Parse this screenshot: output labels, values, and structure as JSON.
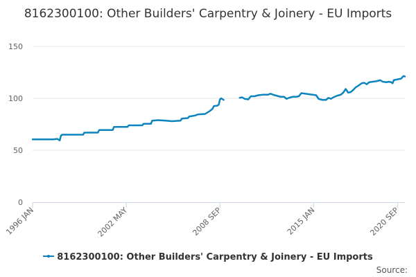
{
  "colors": {
    "series": "#0a84bf",
    "grid": "#e6e6e6",
    "axis": "#ccd6eb"
  },
  "credit": "Source:",
  "chart_data": {
    "type": "line",
    "title": "8162300100: Other Builders' Carpentry & Joinery - EU Imports",
    "xlabel": "",
    "ylabel": "",
    "ylim": [
      0,
      150
    ],
    "yticks": [
      "0",
      "50",
      "100",
      "150"
    ],
    "xticks": [
      {
        "label": "1996 JAN",
        "date": "1996-01"
      },
      {
        "label": "2002 MAY",
        "date": "2002-05"
      },
      {
        "label": "2008 SEP",
        "date": "2008-09"
      },
      {
        "label": "2015 JAN",
        "date": "2015-01"
      },
      {
        "label": "2020 SEP",
        "date": "2020-09"
      }
    ],
    "grid": true,
    "legend_position": "bottom",
    "series": [
      {
        "name": "8162300100: Other Builders' Carpentry & Joinery - EU Imports",
        "segments": [
          [
            [
              "1996-01",
              60.5
            ],
            [
              "1997-06",
              60.5
            ],
            [
              "1997-09",
              61
            ],
            [
              "1997-11",
              59.5
            ],
            [
              "1997-12",
              64
            ],
            [
              "1998-01",
              65
            ],
            [
              "1999-06",
              65
            ],
            [
              "1999-07",
              67
            ],
            [
              "2000-06",
              67
            ],
            [
              "2000-07",
              69.5
            ],
            [
              "2001-06",
              69.5
            ],
            [
              "2001-07",
              72.5
            ],
            [
              "2002-06",
              72.5
            ],
            [
              "2002-07",
              74
            ],
            [
              "2003-06",
              74
            ],
            [
              "2003-07",
              75.5
            ],
            [
              "2004-01",
              75.5
            ],
            [
              "2004-02",
              78.5
            ],
            [
              "2004-07",
              79
            ],
            [
              "2005-01",
              78.5
            ],
            [
              "2005-06",
              78
            ],
            [
              "2006-01",
              78.5
            ],
            [
              "2006-02",
              80.5
            ],
            [
              "2006-07",
              81
            ],
            [
              "2006-08",
              82.5
            ],
            [
              "2007-01",
              83.5
            ],
            [
              "2007-03",
              84.5
            ],
            [
              "2007-09",
              85
            ],
            [
              "2008-01",
              88
            ],
            [
              "2008-03",
              90
            ],
            [
              "2008-04",
              92.5
            ],
            [
              "2008-07",
              93
            ],
            [
              "2008-08",
              94
            ],
            [
              "2008-09",
              99
            ],
            [
              "2008-10",
              100
            ],
            [
              "2008-12",
              98.5
            ]
          ],
          [
            [
              "2010-01",
              100.5
            ],
            [
              "2010-03",
              101
            ],
            [
              "2010-05",
              99.5
            ],
            [
              "2010-08",
              99
            ],
            [
              "2010-10",
              102
            ],
            [
              "2011-01",
              102
            ],
            [
              "2011-04",
              103
            ],
            [
              "2011-08",
              103.5
            ],
            [
              "2011-12",
              103.5
            ],
            [
              "2012-02",
              104.5
            ],
            [
              "2012-04",
              103.5
            ],
            [
              "2012-07",
              102.5
            ],
            [
              "2012-10",
              101.5
            ],
            [
              "2013-01",
              101.5
            ],
            [
              "2013-03",
              99.5
            ],
            [
              "2013-05",
              100.5
            ],
            [
              "2013-08",
              101.5
            ],
            [
              "2013-11",
              101.5
            ],
            [
              "2014-01",
              102
            ],
            [
              "2014-03",
              105
            ],
            [
              "2014-06",
              104.5
            ],
            [
              "2014-09",
              104
            ],
            [
              "2014-12",
              103.5
            ],
            [
              "2015-03",
              103
            ],
            [
              "2015-05",
              99.5
            ],
            [
              "2015-08",
              98.5
            ],
            [
              "2015-11",
              98.5
            ],
            [
              "2016-01",
              100.5
            ],
            [
              "2016-03",
              99.5
            ],
            [
              "2016-05",
              101
            ],
            [
              "2016-08",
              102.5
            ],
            [
              "2016-11",
              103.5
            ],
            [
              "2017-01",
              105.5
            ],
            [
              "2017-03",
              109
            ],
            [
              "2017-05",
              105.5
            ],
            [
              "2017-07",
              106
            ],
            [
              "2017-09",
              108
            ],
            [
              "2017-11",
              110.5
            ],
            [
              "2018-01",
              112
            ],
            [
              "2018-04",
              114.5
            ],
            [
              "2018-06",
              115
            ],
            [
              "2018-08",
              113.5
            ],
            [
              "2018-10",
              115.5
            ],
            [
              "2019-01",
              116
            ],
            [
              "2019-04",
              116.5
            ],
            [
              "2019-07",
              117.5
            ],
            [
              "2019-09",
              116
            ],
            [
              "2019-12",
              115.5
            ],
            [
              "2020-02",
              116
            ],
            [
              "2020-04",
              115.5
            ],
            [
              "2020-05",
              114.5
            ],
            [
              "2020-06",
              117.5
            ],
            [
              "2020-08",
              118
            ],
            [
              "2020-10",
              118.5
            ],
            [
              "2020-12",
              119
            ],
            [
              "2021-01",
              120.5
            ],
            [
              "2021-02",
              121.5
            ],
            [
              "2021-03",
              121
            ]
          ]
        ]
      }
    ]
  }
}
